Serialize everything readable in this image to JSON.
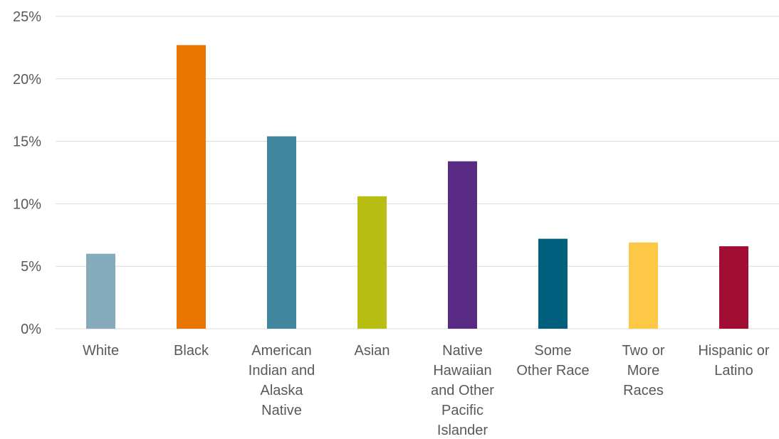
{
  "chart_data": {
    "type": "bar",
    "title": "",
    "xlabel": "",
    "ylabel": "",
    "categories": [
      [
        "White"
      ],
      [
        "Black"
      ],
      [
        "American",
        "Indian and",
        "Alaska",
        "Native"
      ],
      [
        "Asian"
      ],
      [
        "Native",
        "Hawaiian",
        "and Other",
        "Pacific",
        "Islander"
      ],
      [
        "Some",
        "Other Race"
      ],
      [
        "Two or",
        "More",
        "Races"
      ],
      [
        "Hispanic or",
        "Latino"
      ]
    ],
    "values": [
      6.0,
      22.7,
      15.4,
      10.6,
      13.4,
      7.2,
      6.9,
      6.6
    ],
    "colors": [
      "#86abbd",
      "#e87500",
      "#41869f",
      "#b8bf12",
      "#582a84",
      "#005f7d",
      "#fcc845",
      "#a10d33"
    ],
    "ylim": [
      0,
      25
    ],
    "yticks": [
      0,
      5,
      10,
      15,
      20,
      25
    ],
    "ytick_labels": [
      "0%",
      "5%",
      "10%",
      "15%",
      "20%",
      "25%"
    ],
    "grid": true,
    "legend": "none",
    "gridline_color": "#d9d9d9"
  }
}
